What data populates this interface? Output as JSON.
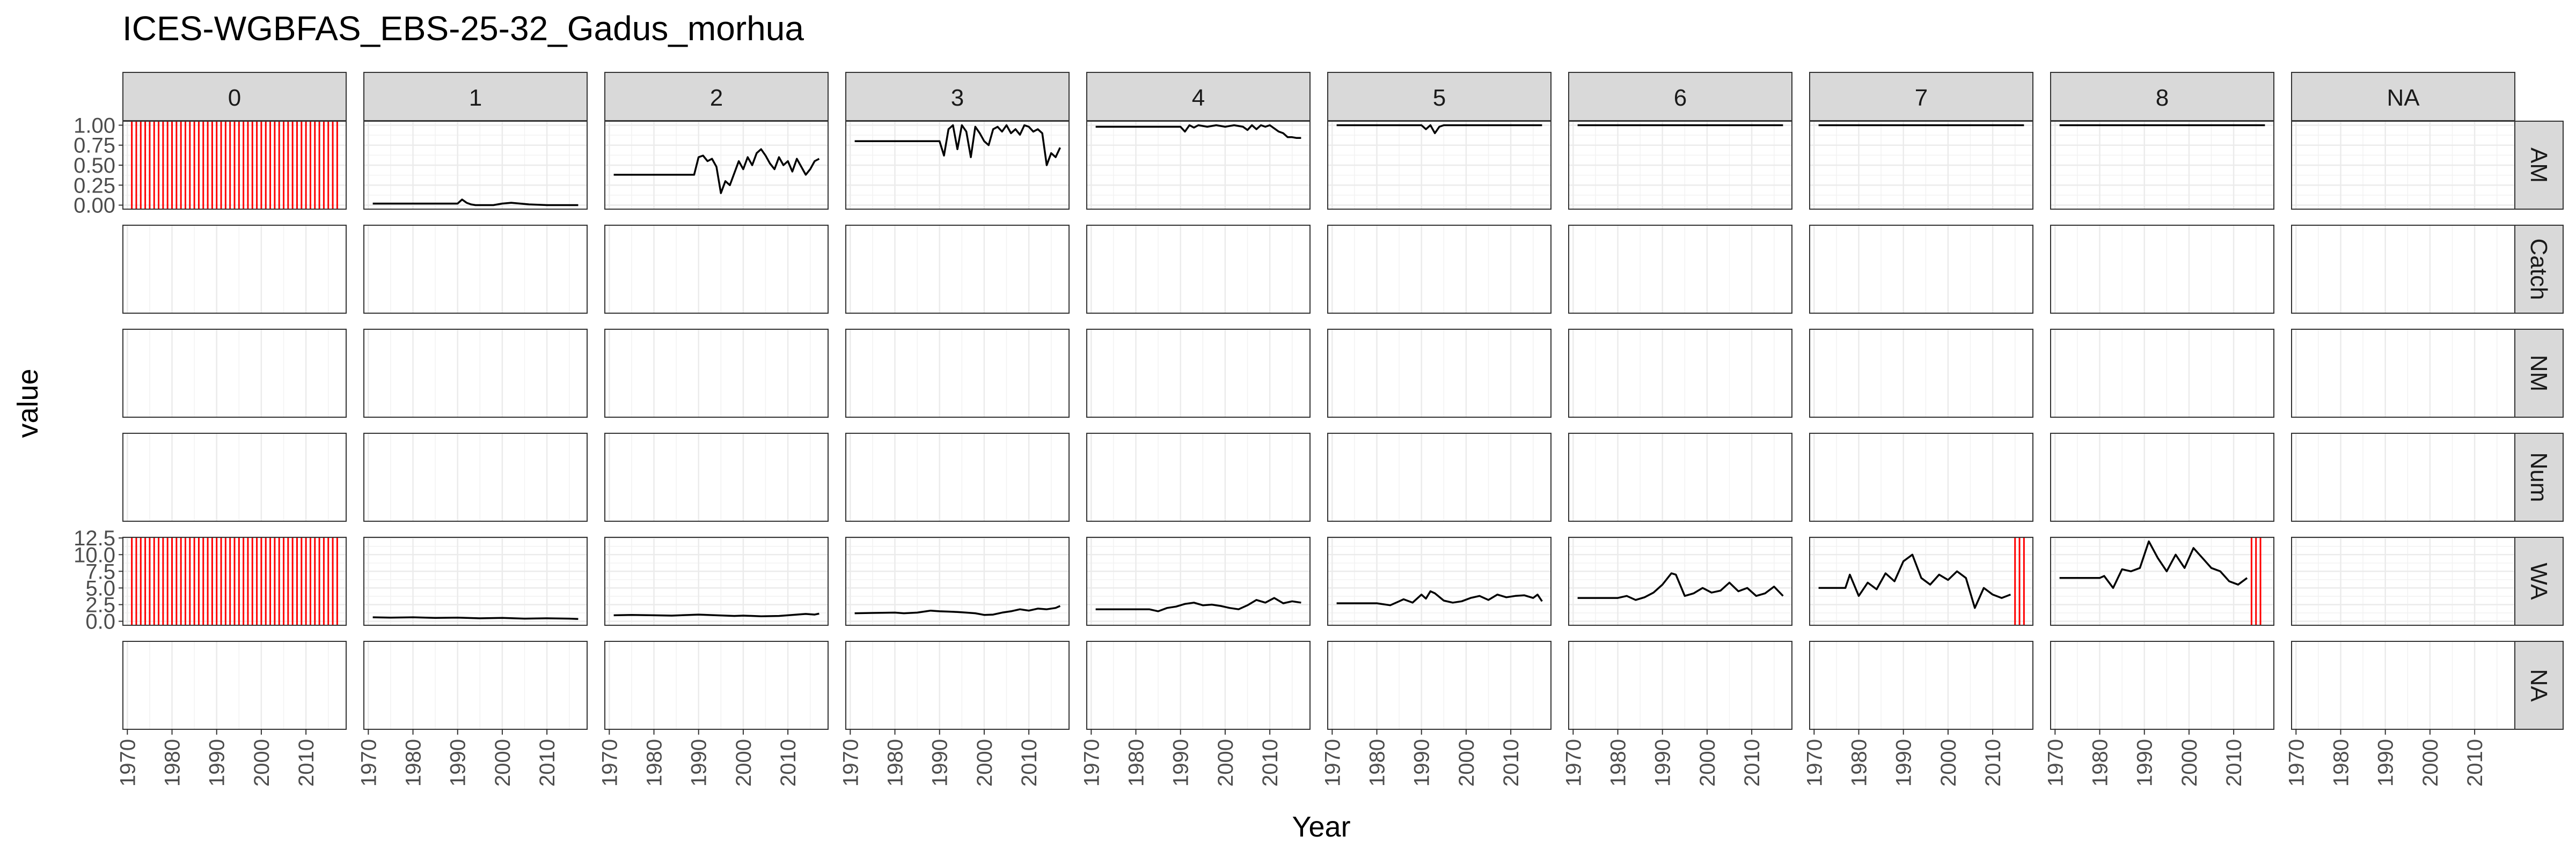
{
  "chart_data": {
    "type": "line",
    "title": "ICES-WGBFAS_EBS-25-32_Gadus_morhua",
    "xlabel": "Year",
    "ylabel": "value",
    "xlim": [
      1969,
      2019
    ],
    "x_ticks": [
      "1970",
      "1980",
      "1990",
      "2000",
      "2010"
    ],
    "grid": true,
    "col_facets": [
      "0",
      "1",
      "2",
      "3",
      "4",
      "5",
      "6",
      "7",
      "8",
      "NA"
    ],
    "row_facets": [
      "AM",
      "Catch",
      "NM",
      "Num",
      "WA",
      "NA"
    ],
    "row_scales": {
      "AM": {
        "ylim": [
          -0.05,
          1.05
        ],
        "ticks": [
          "0.00",
          "0.25",
          "0.50",
          "0.75",
          "1.00"
        ],
        "tick_values": [
          0,
          0.25,
          0.5,
          0.75,
          1.0
        ]
      },
      "WA": {
        "ylim": [
          -0.6,
          12.6
        ],
        "ticks": [
          "0.0",
          "2.5",
          "5.0",
          "7.5",
          "10.0",
          "12.5"
        ],
        "tick_values": [
          0,
          2.5,
          5,
          7.5,
          10,
          12.5
        ]
      }
    },
    "line_color": "#000000",
    "missing_color": "#ff0000",
    "series": [
      {
        "row": "AM",
        "col": "0",
        "missing_years": "1971-2017"
      },
      {
        "row": "AM",
        "col": "1",
        "x": [
          1971,
          1980,
          1988,
          1990,
          1991,
          1992,
          1993,
          1994,
          1996,
          1998,
          2000,
          2002,
          2004,
          2006,
          2010,
          2017
        ],
        "y": [
          0.02,
          0.02,
          0.02,
          0.02,
          0.07,
          0.03,
          0.01,
          0.0,
          0.0,
          0.0,
          0.02,
          0.03,
          0.02,
          0.01,
          0.0,
          0.0
        ]
      },
      {
        "row": "AM",
        "col": "2",
        "x": [
          1971,
          1980,
          1989,
          1990,
          1991,
          1992,
          1993,
          1994,
          1995,
          1996,
          1997,
          1998,
          1999,
          2000,
          2001,
          2002,
          2003,
          2004,
          2005,
          2006,
          2007,
          2008,
          2009,
          2010,
          2011,
          2012,
          2013,
          2014,
          2015,
          2016,
          2017
        ],
        "y": [
          0.38,
          0.38,
          0.38,
          0.6,
          0.62,
          0.55,
          0.58,
          0.48,
          0.15,
          0.3,
          0.25,
          0.4,
          0.55,
          0.45,
          0.6,
          0.5,
          0.65,
          0.7,
          0.62,
          0.52,
          0.45,
          0.6,
          0.5,
          0.55,
          0.42,
          0.58,
          0.48,
          0.38,
          0.45,
          0.55,
          0.58
        ]
      },
      {
        "row": "AM",
        "col": "3",
        "x": [
          1971,
          1980,
          1990,
          1991,
          1992,
          1993,
          1994,
          1995,
          1996,
          1997,
          1998,
          1999,
          2000,
          2001,
          2002,
          2003,
          2004,
          2005,
          2006,
          2007,
          2008,
          2009,
          2010,
          2011,
          2012,
          2013,
          2014,
          2015,
          2016,
          2017
        ],
        "y": [
          0.8,
          0.8,
          0.8,
          0.62,
          0.95,
          1.0,
          0.7,
          1.0,
          0.92,
          0.6,
          0.98,
          0.9,
          0.8,
          0.75,
          0.95,
          0.98,
          0.92,
          1.0,
          0.9,
          0.95,
          0.88,
          1.0,
          0.98,
          0.92,
          0.95,
          0.9,
          0.5,
          0.65,
          0.6,
          0.72
        ]
      },
      {
        "row": "AM",
        "col": "4",
        "x": [
          1971,
          1980,
          1990,
          1991,
          1992,
          1993,
          1994,
          1996,
          1998,
          2000,
          2002,
          2004,
          2005,
          2006,
          2007,
          2008,
          2009,
          2010,
          2011,
          2012,
          2013,
          2014,
          2015,
          2016,
          2017
        ],
        "y": [
          0.98,
          0.98,
          0.98,
          0.92,
          1.0,
          0.97,
          1.0,
          0.98,
          1.0,
          0.98,
          1.0,
          0.98,
          0.94,
          1.0,
          0.95,
          1.0,
          0.98,
          1.0,
          0.96,
          0.92,
          0.9,
          0.85,
          0.85,
          0.84,
          0.84
        ]
      },
      {
        "row": "AM",
        "col": "5",
        "x": [
          1971,
          1980,
          1989,
          1990,
          1991,
          1992,
          1993,
          1994,
          1995,
          2017
        ],
        "y": [
          1.0,
          1.0,
          1.0,
          1.0,
          0.95,
          1.0,
          0.9,
          0.98,
          1.0,
          1.0
        ]
      },
      {
        "row": "AM",
        "col": "6",
        "x": [
          1971,
          2017
        ],
        "y": [
          1.0,
          1.0
        ]
      },
      {
        "row": "AM",
        "col": "7",
        "x": [
          1971,
          2017
        ],
        "y": [
          1.0,
          1.0
        ]
      },
      {
        "row": "AM",
        "col": "8",
        "x": [
          1971,
          2017
        ],
        "y": [
          1.0,
          1.0
        ]
      },
      {
        "row": "WA",
        "col": "0",
        "missing_years": "1971-2017"
      },
      {
        "row": "WA",
        "col": "1",
        "x": [
          1971,
          1975,
          1980,
          1985,
          1990,
          1995,
          2000,
          2005,
          2010,
          2015,
          2017
        ],
        "y": [
          0.6,
          0.55,
          0.6,
          0.5,
          0.55,
          0.45,
          0.5,
          0.4,
          0.45,
          0.4,
          0.35
        ]
      },
      {
        "row": "WA",
        "col": "2",
        "x": [
          1971,
          1975,
          1980,
          1984,
          1988,
          1990,
          1994,
          1998,
          2000,
          2004,
          2008,
          2010,
          2012,
          2014,
          2016,
          2017
        ],
        "y": [
          0.9,
          0.95,
          0.9,
          0.85,
          0.95,
          1.0,
          0.9,
          0.8,
          0.85,
          0.75,
          0.8,
          0.9,
          1.0,
          1.1,
          1.0,
          1.15
        ]
      },
      {
        "row": "WA",
        "col": "3",
        "x": [
          1971,
          1975,
          1980,
          1982,
          1985,
          1988,
          1990,
          1992,
          1994,
          1996,
          1998,
          2000,
          2002,
          2004,
          2006,
          2008,
          2010,
          2012,
          2014,
          2016,
          2017
        ],
        "y": [
          1.2,
          1.25,
          1.3,
          1.2,
          1.3,
          1.6,
          1.5,
          1.45,
          1.4,
          1.3,
          1.2,
          0.95,
          1.0,
          1.3,
          1.5,
          1.8,
          1.6,
          1.9,
          1.8,
          2.0,
          2.3
        ]
      },
      {
        "row": "WA",
        "col": "4",
        "x": [
          1971,
          1975,
          1980,
          1983,
          1985,
          1987,
          1989,
          1991,
          1993,
          1995,
          1997,
          1999,
          2001,
          2003,
          2005,
          2007,
          2009,
          2011,
          2013,
          2015,
          2017
        ],
        "y": [
          1.8,
          1.8,
          1.8,
          1.8,
          1.5,
          2.0,
          2.2,
          2.6,
          2.8,
          2.4,
          2.5,
          2.3,
          2.0,
          1.8,
          2.4,
          3.2,
          2.8,
          3.5,
          2.7,
          3.0,
          2.8
        ]
      },
      {
        "row": "WA",
        "col": "5",
        "x": [
          1971,
          1980,
          1983,
          1985,
          1986,
          1988,
          1990,
          1991,
          1992,
          1993,
          1995,
          1997,
          1999,
          2001,
          2003,
          2005,
          2007,
          2009,
          2011,
          2013,
          2015,
          2016,
          2017
        ],
        "y": [
          2.7,
          2.7,
          2.4,
          3.0,
          3.3,
          2.8,
          4.0,
          3.4,
          4.5,
          4.2,
          3.1,
          2.8,
          3.0,
          3.5,
          3.8,
          3.2,
          4.0,
          3.6,
          3.8,
          3.9,
          3.5,
          4.0,
          3.0
        ]
      },
      {
        "row": "WA",
        "col": "6",
        "x": [
          1971,
          1980,
          1982,
          1984,
          1986,
          1988,
          1990,
          1992,
          1993,
          1995,
          1997,
          1999,
          2001,
          2003,
          2005,
          2007,
          2009,
          2011,
          2013,
          2015,
          2017
        ],
        "y": [
          3.5,
          3.5,
          3.8,
          3.2,
          3.6,
          4.3,
          5.5,
          7.2,
          7.0,
          3.8,
          4.2,
          5.0,
          4.3,
          4.6,
          5.8,
          4.5,
          5.0,
          3.8,
          4.2,
          5.2,
          3.8
        ]
      },
      {
        "row": "WA",
        "col": "7",
        "x": [
          1971,
          1977,
          1978,
          1980,
          1982,
          1984,
          1986,
          1988,
          1990,
          1992,
          1994,
          1996,
          1998,
          2000,
          2002,
          2004,
          2006,
          2008,
          2010,
          2012,
          2014
        ],
        "y": [
          5.0,
          5.0,
          7.0,
          3.8,
          5.8,
          4.8,
          7.2,
          6.0,
          9.0,
          10.0,
          6.5,
          5.5,
          7.0,
          6.2,
          7.5,
          6.5,
          2.0,
          5.0,
          4.0,
          3.5,
          4.0
        ],
        "missing_years": "2015-2017"
      },
      {
        "row": "WA",
        "col": "8",
        "x": [
          1971,
          1980,
          1981,
          1983,
          1985,
          1987,
          1989,
          1991,
          1993,
          1995,
          1997,
          1999,
          2001,
          2003,
          2005,
          2007,
          2009,
          2011,
          2013
        ],
        "y": [
          6.5,
          6.5,
          6.8,
          5.0,
          7.8,
          7.5,
          8.0,
          12.0,
          9.5,
          7.5,
          10.0,
          8.0,
          11.0,
          9.5,
          8.0,
          7.5,
          6.0,
          5.5,
          6.5
        ],
        "missing_years": "2014-2016"
      }
    ]
  }
}
